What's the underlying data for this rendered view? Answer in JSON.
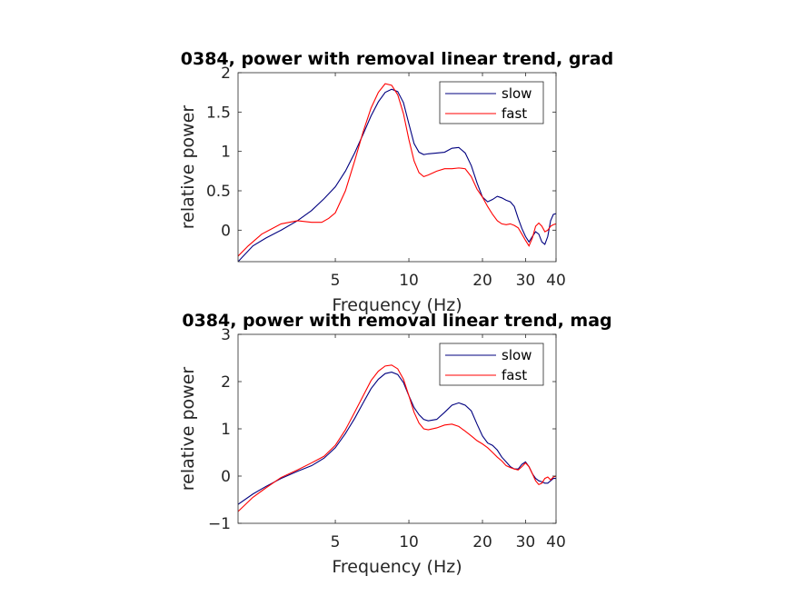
{
  "chart_data": [
    {
      "type": "line",
      "title": "0384, power with removal linear trend, grad",
      "xlabel": "Frequency (Hz)",
      "ylabel": "relative power",
      "xscale": "log",
      "xlim": [
        2,
        40
      ],
      "ylim": [
        -0.4,
        2
      ],
      "xticks": [
        5,
        10,
        20,
        30,
        40
      ],
      "yticks": [
        0,
        0.5,
        1,
        1.5,
        2
      ],
      "ytick_labels": [
        "0",
        "0.5",
        "1",
        "1.5",
        "2"
      ],
      "legend_position": "top-right",
      "grid": false,
      "series": [
        {
          "name": "slow",
          "color": "#00007F",
          "points": [
            [
              2,
              -0.4
            ],
            [
              2.3,
              -0.2
            ],
            [
              2.6,
              -0.1
            ],
            [
              3,
              0
            ],
            [
              3.5,
              0.12
            ],
            [
              4,
              0.25
            ],
            [
              4.5,
              0.4
            ],
            [
              5,
              0.55
            ],
            [
              5.5,
              0.75
            ],
            [
              6,
              0.98
            ],
            [
              6.5,
              1.22
            ],
            [
              7,
              1.45
            ],
            [
              7.5,
              1.63
            ],
            [
              8,
              1.75
            ],
            [
              8.5,
              1.79
            ],
            [
              9,
              1.76
            ],
            [
              9.5,
              1.62
            ],
            [
              10,
              1.35
            ],
            [
              10.5,
              1.1
            ],
            [
              11,
              0.99
            ],
            [
              11.5,
              0.96
            ],
            [
              12,
              0.97
            ],
            [
              13,
              0.98
            ],
            [
              14,
              0.99
            ],
            [
              15,
              1.04
            ],
            [
              16,
              1.05
            ],
            [
              17,
              0.98
            ],
            [
              18,
              0.82
            ],
            [
              19,
              0.6
            ],
            [
              20,
              0.42
            ],
            [
              21,
              0.36
            ],
            [
              22,
              0.39
            ],
            [
              23,
              0.43
            ],
            [
              24,
              0.41
            ],
            [
              25,
              0.38
            ],
            [
              26,
              0.36
            ],
            [
              27,
              0.3
            ],
            [
              28,
              0.15
            ],
            [
              29,
              0.02
            ],
            [
              30,
              -0.08
            ],
            [
              31,
              -0.15
            ],
            [
              32,
              -0.08
            ],
            [
              33,
              -0.02
            ],
            [
              34,
              -0.05
            ],
            [
              35,
              -0.15
            ],
            [
              36,
              -0.18
            ],
            [
              37,
              -0.08
            ],
            [
              38,
              0.12
            ],
            [
              39,
              0.2
            ],
            [
              40,
              0.21
            ]
          ]
        },
        {
          "name": "fast",
          "color": "#FF0000",
          "points": [
            [
              2,
              -0.33
            ],
            [
              2.2,
              -0.2
            ],
            [
              2.5,
              -0.05
            ],
            [
              3,
              0.08
            ],
            [
              3.5,
              0.12
            ],
            [
              4,
              0.1
            ],
            [
              4.4,
              0.1
            ],
            [
              4.7,
              0.15
            ],
            [
              5,
              0.22
            ],
            [
              5.5,
              0.5
            ],
            [
              6,
              0.88
            ],
            [
              6.5,
              1.25
            ],
            [
              7,
              1.55
            ],
            [
              7.5,
              1.75
            ],
            [
              8,
              1.86
            ],
            [
              8.5,
              1.84
            ],
            [
              9,
              1.72
            ],
            [
              9.5,
              1.48
            ],
            [
              10,
              1.15
            ],
            [
              10.5,
              0.88
            ],
            [
              11,
              0.73
            ],
            [
              11.5,
              0.68
            ],
            [
              12,
              0.7
            ],
            [
              13,
              0.75
            ],
            [
              14,
              0.78
            ],
            [
              15,
              0.78
            ],
            [
              16,
              0.79
            ],
            [
              17,
              0.78
            ],
            [
              18,
              0.68
            ],
            [
              19,
              0.52
            ],
            [
              20,
              0.42
            ],
            [
              21,
              0.3
            ],
            [
              22,
              0.2
            ],
            [
              23,
              0.12
            ],
            [
              24,
              0.08
            ],
            [
              25,
              0.07
            ],
            [
              26,
              0.08
            ],
            [
              27,
              0.06
            ],
            [
              28,
              0.03
            ],
            [
              29,
              -0.05
            ],
            [
              30,
              -0.13
            ],
            [
              31,
              -0.2
            ],
            [
              32,
              -0.1
            ],
            [
              33,
              0.05
            ],
            [
              34,
              0.09
            ],
            [
              35,
              0.05
            ],
            [
              36,
              -0.02
            ],
            [
              37,
              0
            ],
            [
              38,
              0.05
            ],
            [
              39,
              0.07
            ],
            [
              40,
              0.08
            ]
          ]
        }
      ]
    },
    {
      "type": "line",
      "title": "0384, power with removal linear trend, mag",
      "xlabel": "Frequency (Hz)",
      "ylabel": "relative power",
      "xscale": "log",
      "xlim": [
        2,
        40
      ],
      "ylim": [
        -1,
        3
      ],
      "xticks": [
        5,
        10,
        20,
        30,
        40
      ],
      "yticks": [
        -1,
        0,
        1,
        2,
        3
      ],
      "ytick_labels": [
        "−1",
        "0",
        "1",
        "2",
        "3"
      ],
      "legend_position": "top-right",
      "grid": false,
      "series": [
        {
          "name": "slow",
          "color": "#00007F",
          "points": [
            [
              2,
              -0.6
            ],
            [
              2.3,
              -0.38
            ],
            [
              2.6,
              -0.22
            ],
            [
              3,
              -0.05
            ],
            [
              3.5,
              0.1
            ],
            [
              4,
              0.22
            ],
            [
              4.5,
              0.38
            ],
            [
              5,
              0.6
            ],
            [
              5.5,
              0.9
            ],
            [
              6,
              1.22
            ],
            [
              6.5,
              1.55
            ],
            [
              7,
              1.85
            ],
            [
              7.5,
              2.05
            ],
            [
              8,
              2.17
            ],
            [
              8.5,
              2.2
            ],
            [
              9,
              2.15
            ],
            [
              9.5,
              1.98
            ],
            [
              10,
              1.7
            ],
            [
              10.5,
              1.45
            ],
            [
              11,
              1.3
            ],
            [
              11.5,
              1.2
            ],
            [
              12,
              1.17
            ],
            [
              13,
              1.2
            ],
            [
              14,
              1.35
            ],
            [
              15,
              1.5
            ],
            [
              16,
              1.55
            ],
            [
              17,
              1.5
            ],
            [
              18,
              1.38
            ],
            [
              19,
              1.1
            ],
            [
              20,
              0.85
            ],
            [
              21,
              0.7
            ],
            [
              22,
              0.65
            ],
            [
              23,
              0.55
            ],
            [
              24,
              0.4
            ],
            [
              25,
              0.3
            ],
            [
              26,
              0.2
            ],
            [
              27,
              0.15
            ],
            [
              28,
              0.15
            ],
            [
              29,
              0.25
            ],
            [
              30,
              0.3
            ],
            [
              31,
              0.2
            ],
            [
              32,
              0.05
            ],
            [
              33,
              -0.05
            ],
            [
              34,
              -0.1
            ],
            [
              35,
              -0.12
            ],
            [
              36,
              -0.15
            ],
            [
              37,
              -0.15
            ],
            [
              38,
              -0.1
            ],
            [
              39,
              -0.05
            ],
            [
              40,
              -0.05
            ]
          ]
        },
        {
          "name": "fast",
          "color": "#FF0000",
          "points": [
            [
              2,
              -0.75
            ],
            [
              2.3,
              -0.45
            ],
            [
              2.6,
              -0.25
            ],
            [
              3,
              -0.03
            ],
            [
              3.5,
              0.13
            ],
            [
              4,
              0.28
            ],
            [
              4.5,
              0.42
            ],
            [
              5,
              0.65
            ],
            [
              5.5,
              0.98
            ],
            [
              6,
              1.35
            ],
            [
              6.5,
              1.7
            ],
            [
              7,
              2.02
            ],
            [
              7.5,
              2.22
            ],
            [
              8,
              2.33
            ],
            [
              8.5,
              2.35
            ],
            [
              9,
              2.27
            ],
            [
              9.5,
              2.05
            ],
            [
              10,
              1.7
            ],
            [
              10.5,
              1.35
            ],
            [
              11,
              1.12
            ],
            [
              11.5,
              1.0
            ],
            [
              12,
              0.98
            ],
            [
              13,
              1.02
            ],
            [
              14,
              1.08
            ],
            [
              15,
              1.1
            ],
            [
              16,
              1.05
            ],
            [
              17,
              0.95
            ],
            [
              18,
              0.85
            ],
            [
              19,
              0.75
            ],
            [
              20,
              0.68
            ],
            [
              21,
              0.6
            ],
            [
              22,
              0.5
            ],
            [
              23,
              0.4
            ],
            [
              24,
              0.32
            ],
            [
              25,
              0.22
            ],
            [
              26,
              0.18
            ],
            [
              27,
              0.15
            ],
            [
              28,
              0.13
            ],
            [
              29,
              0.2
            ],
            [
              30,
              0.28
            ],
            [
              31,
              0.2
            ],
            [
              32,
              0.05
            ],
            [
              33,
              -0.1
            ],
            [
              34,
              -0.18
            ],
            [
              35,
              -0.15
            ],
            [
              36,
              -0.05
            ],
            [
              37,
              -0.02
            ],
            [
              38,
              -0.08
            ],
            [
              39,
              -0.02
            ],
            [
              40,
              0
            ]
          ]
        }
      ]
    }
  ]
}
